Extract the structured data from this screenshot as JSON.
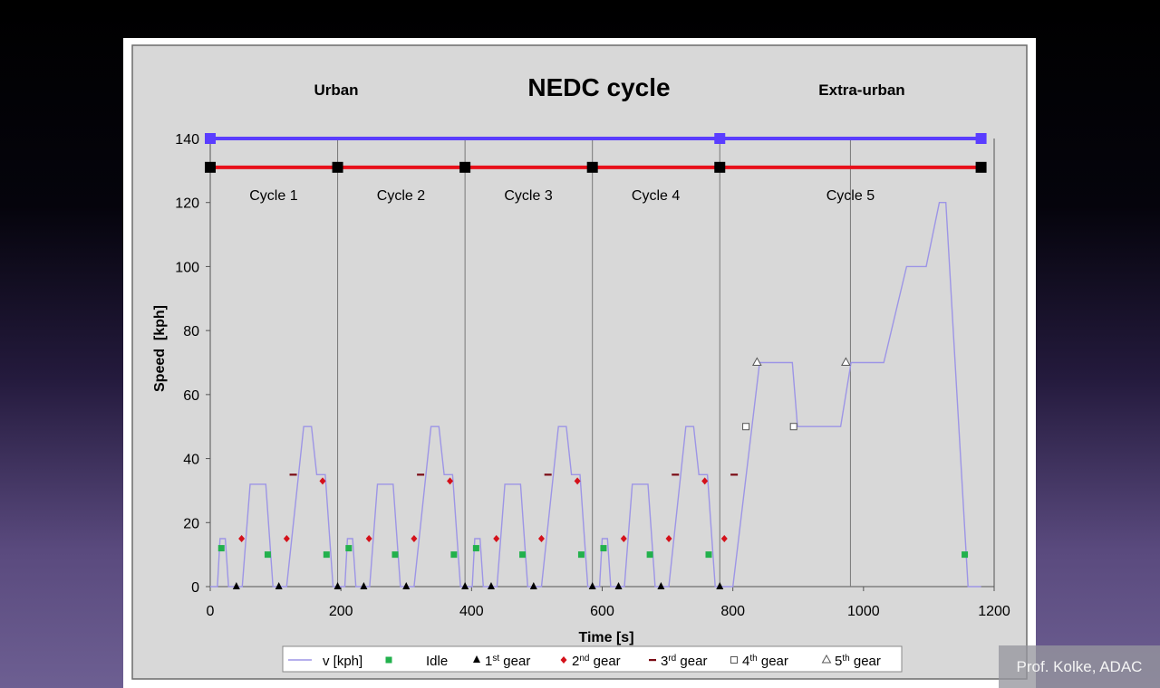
{
  "chart_data": {
    "type": "line",
    "title": "NEDC cycle",
    "xlabel": "Time [s]",
    "ylabel": "Speed  [kph]",
    "xlim": [
      0,
      1200
    ],
    "ylim": [
      0,
      140
    ],
    "xticks": [
      "0",
      "200",
      "400",
      "600",
      "800",
      "1000",
      "1200"
    ],
    "yticks": [
      "0",
      "20",
      "40",
      "60",
      "80",
      "100",
      "120",
      "140"
    ],
    "grid": "vertical lines at cycle boundaries",
    "legend_position": "bottom",
    "phase_labels": [
      {
        "label": "Urban",
        "x": 195
      },
      {
        "label": "Extra-urban",
        "x": 995
      }
    ],
    "phase_bar": {
      "y": 140,
      "color": "#5a3dff",
      "marker_x": [
        0,
        780,
        1180
      ]
    },
    "cycle_bar": {
      "y": 131,
      "color": "#e8101a",
      "marker_x": [
        0,
        195,
        390,
        585,
        780,
        1180
      ]
    },
    "cycle_labels": [
      {
        "label": "Cycle 1",
        "x": 97
      },
      {
        "label": "Cycle 2",
        "x": 292
      },
      {
        "label": "Cycle 3",
        "x": 487
      },
      {
        "label": "Cycle 4",
        "x": 682
      },
      {
        "label": "Cycle 5",
        "x": 980
      }
    ],
    "cycle_dividers": [
      195,
      390,
      585,
      780,
      980
    ],
    "urban_cycle_profile": {
      "x": [
        0,
        11,
        15,
        23,
        28,
        49,
        61,
        85,
        96,
        117,
        143,
        155,
        163,
        176,
        188,
        195
      ],
      "y": [
        0,
        0,
        15,
        15,
        0,
        0,
        32,
        32,
        0,
        0,
        50,
        50,
        35,
        35,
        0,
        0
      ]
    },
    "extra_urban_profile": {
      "x": [
        780,
        800,
        841,
        891,
        899,
        965,
        981,
        1031,
        1066,
        1096,
        1116,
        1126,
        1160,
        1180
      ],
      "y": [
        0,
        0,
        70,
        70,
        50,
        50,
        70,
        70,
        100,
        100,
        120,
        120,
        0,
        0
      ]
    },
    "series": [
      {
        "name": "v [kph]",
        "type": "line",
        "color": "#9d95e6"
      },
      {
        "name": "Idle",
        "type": "marker",
        "symbol": "square",
        "color": "#22b14c",
        "points": [
          [
            17,
            12
          ],
          [
            88,
            10
          ],
          [
            178,
            10
          ],
          [
            212,
            12
          ],
          [
            283,
            10
          ],
          [
            373,
            10
          ],
          [
            407,
            12
          ],
          [
            478,
            10
          ],
          [
            568,
            10
          ],
          [
            602,
            12
          ],
          [
            673,
            10
          ],
          [
            763,
            10
          ],
          [
            1155,
            10
          ]
        ]
      },
      {
        "name": "1st gear",
        "type": "marker",
        "symbol": "triangle",
        "color": "#000000",
        "points": [
          [
            40,
            0
          ],
          [
            105,
            0
          ],
          [
            195,
            0
          ],
          [
            235,
            0
          ],
          [
            300,
            0
          ],
          [
            390,
            0
          ],
          [
            430,
            0
          ],
          [
            495,
            0
          ],
          [
            585,
            0
          ],
          [
            625,
            0
          ],
          [
            690,
            0
          ],
          [
            780,
            0
          ]
        ]
      },
      {
        "name": "2nd gear",
        "type": "marker",
        "symbol": "diamond",
        "color": "#d4111a",
        "points": [
          [
            48,
            15
          ],
          [
            117,
            15
          ],
          [
            172,
            33
          ],
          [
            243,
            15
          ],
          [
            312,
            15
          ],
          [
            367,
            33
          ],
          [
            438,
            15
          ],
          [
            507,
            15
          ],
          [
            562,
            33
          ],
          [
            633,
            15
          ],
          [
            702,
            15
          ],
          [
            757,
            33
          ],
          [
            787,
            15
          ]
        ]
      },
      {
        "name": "3rd gear",
        "type": "marker",
        "symbol": "dash",
        "color": "#7a0a14",
        "points": [
          [
            127,
            35
          ],
          [
            322,
            35
          ],
          [
            517,
            35
          ],
          [
            712,
            35
          ],
          [
            802,
            35
          ]
        ]
      },
      {
        "name": "4th gear",
        "type": "marker",
        "symbol": "open-square",
        "color": "#555555",
        "points": [
          [
            820,
            50
          ],
          [
            893,
            50
          ]
        ]
      },
      {
        "name": "5th gear",
        "type": "marker",
        "symbol": "open-triangle",
        "color": "#555555",
        "points": [
          [
            837,
            70
          ],
          [
            973,
            70
          ]
        ]
      }
    ]
  },
  "legend": [
    {
      "symbol": "line",
      "label": "v [kph]",
      "sup": ""
    },
    {
      "symbol": "square",
      "label": "Idle",
      "sup": ""
    },
    {
      "symbol": "triangle",
      "label": "1",
      "sup": "st",
      "tail": " gear"
    },
    {
      "symbol": "diamond",
      "label": "2",
      "sup": "nd",
      "tail": " gear"
    },
    {
      "symbol": "dash",
      "label": "3",
      "sup": "rd",
      "tail": " gear"
    },
    {
      "symbol": "open-square",
      "label": "4",
      "sup": "th",
      "tail": " gear"
    },
    {
      "symbol": "open-triangle",
      "label": "5",
      "sup": "th",
      "tail": " gear"
    }
  ],
  "credit": "Prof. Kolke, ADAC"
}
